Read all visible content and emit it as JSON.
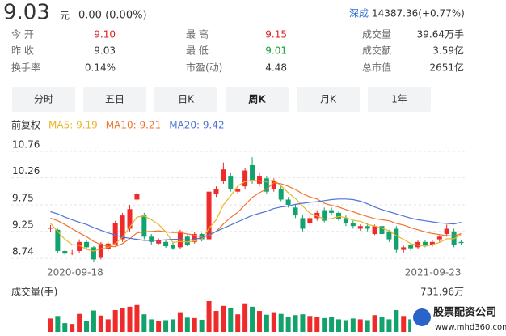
{
  "quote": {
    "price": "9.03",
    "unit": "元",
    "change": "0.00 (0.00%)"
  },
  "index": {
    "name": "深成",
    "value": "14387.36(+0.77%)"
  },
  "stats": [
    [
      {
        "label": "今 开",
        "value": "9.10",
        "color": "#e02020"
      },
      {
        "label": "最 高",
        "value": "9.15",
        "color": "#e02020"
      },
      {
        "label": "成交量",
        "value": "39.64万手"
      }
    ],
    [
      {
        "label": "昨 收",
        "value": "9.03"
      },
      {
        "label": "最 低",
        "value": "9.01",
        "color": "#1a9f3a"
      },
      {
        "label": "成交额",
        "value": "3.59亿"
      }
    ],
    [
      {
        "label": "换手率",
        "value": "0.14%"
      },
      {
        "label": "市盈(动)",
        "value": "4.48"
      },
      {
        "label": "总市值",
        "value": "2651亿"
      }
    ]
  ],
  "tabs": [
    {
      "label": "分时"
    },
    {
      "label": "五日"
    },
    {
      "label": "日K"
    },
    {
      "label": "周K",
      "active": true
    },
    {
      "label": "月K"
    },
    {
      "label": "1年"
    }
  ],
  "chart_data": [
    {
      "type": "candlestick",
      "adjust_label": "前复权",
      "categories": [
        "2020-09-18",
        null,
        null,
        null,
        null,
        null,
        null,
        null,
        null,
        null,
        null,
        null,
        null,
        null,
        null,
        null,
        null,
        null,
        null,
        null,
        null,
        null,
        null,
        null,
        null,
        null,
        null,
        null,
        null,
        null,
        null,
        null,
        null,
        null,
        null,
        null,
        null,
        null,
        null,
        null,
        null,
        null,
        null,
        null,
        null,
        null,
        null,
        null,
        null,
        null,
        null,
        null,
        null,
        null,
        null,
        null,
        null,
        "2021-09-23"
      ],
      "open": [
        9.3,
        9.28,
        8.88,
        8.83,
        8.88,
        9.05,
        8.95,
        8.75,
        8.92,
        9.0,
        9.1,
        9.3,
        9.85,
        9.55,
        9.15,
        9.02,
        9.05,
        9.0,
        8.95,
        9.15,
        9.05,
        9.2,
        9.1,
        9.95,
        10.2,
        10.3,
        10.0,
        10.1,
        10.5,
        10.15,
        10.25,
        10.05,
        10.05,
        9.85,
        9.7,
        9.5,
        9.4,
        9.5,
        9.65,
        9.65,
        9.6,
        9.5,
        9.4,
        9.3,
        9.35,
        9.2,
        9.35,
        9.25,
        9.3,
        8.9,
        9.0,
        8.95,
        9.05,
        9.0,
        9.1,
        9.2,
        9.25,
        9.05
      ],
      "high": [
        9.37,
        9.3,
        8.9,
        8.9,
        9.1,
        9.08,
        8.97,
        9.05,
        9.05,
        9.45,
        9.6,
        9.75,
        10.0,
        9.6,
        9.2,
        9.12,
        9.08,
        9.03,
        9.28,
        9.18,
        9.24,
        9.22,
        10.08,
        10.1,
        10.55,
        10.35,
        10.1,
        10.45,
        10.65,
        10.35,
        10.3,
        10.25,
        10.1,
        9.9,
        9.75,
        9.55,
        9.55,
        9.65,
        9.7,
        9.7,
        9.63,
        9.55,
        9.45,
        9.38,
        9.4,
        9.38,
        9.4,
        9.28,
        9.35,
        8.98,
        9.03,
        9.08,
        9.08,
        9.08,
        9.18,
        9.38,
        9.3,
        9.08
      ],
      "low": [
        9.24,
        8.85,
        8.8,
        8.8,
        8.85,
        8.92,
        8.68,
        8.72,
        8.88,
        8.98,
        9.05,
        9.25,
        9.8,
        9.1,
        9.0,
        9.0,
        8.94,
        8.9,
        8.92,
        8.97,
        9.02,
        9.06,
        9.08,
        9.9,
        10.15,
        10.0,
        9.95,
        10.05,
        10.15,
        10.1,
        9.95,
        10.0,
        9.82,
        9.7,
        9.5,
        9.25,
        9.35,
        9.45,
        9.42,
        9.55,
        9.45,
        9.35,
        9.3,
        9.26,
        9.25,
        9.18,
        9.15,
        9.05,
        8.85,
        8.85,
        8.88,
        8.92,
        8.95,
        8.96,
        9.05,
        9.15,
        8.95,
        9.0
      ],
      "close": [
        9.32,
        8.88,
        8.83,
        8.85,
        9.05,
        8.95,
        8.72,
        9.02,
        9.02,
        9.4,
        9.55,
        9.67,
        9.95,
        9.15,
        9.05,
        9.08,
        8.97,
        8.93,
        9.25,
        9.0,
        9.2,
        9.1,
        10.0,
        10.05,
        10.42,
        10.05,
        10.05,
        10.4,
        10.2,
        10.3,
        10.0,
        10.2,
        9.85,
        9.75,
        9.55,
        9.3,
        9.5,
        9.6,
        9.45,
        9.6,
        9.48,
        9.4,
        9.35,
        9.35,
        9.3,
        9.35,
        9.2,
        9.1,
        8.9,
        8.95,
        8.93,
        9.05,
        9.0,
        9.05,
        9.15,
        9.3,
        9.0,
        9.03
      ],
      "up_color": "#ee2a2a",
      "down_color": "#12a36c",
      "series": [
        {
          "name": "MA5: 9.19",
          "color": "#e9b52a",
          "values": [
            9.4,
            9.25,
            9.1,
            9.0,
            8.99,
            8.91,
            8.88,
            8.92,
            8.95,
            9.02,
            9.14,
            9.33,
            9.52,
            9.54,
            9.47,
            9.38,
            9.24,
            9.04,
            9.06,
            9.05,
            9.07,
            9.1,
            9.31,
            9.47,
            9.75,
            9.92,
            10.11,
            10.19,
            10.22,
            10.2,
            10.19,
            10.22,
            10.11,
            9.98,
            9.87,
            9.73,
            9.59,
            9.54,
            9.48,
            9.49,
            9.53,
            9.51,
            9.46,
            9.44,
            9.38,
            9.35,
            9.31,
            9.26,
            9.17,
            9.1,
            9.02,
            8.99,
            8.97,
            9.0,
            9.04,
            9.11,
            9.11,
            9.19
          ]
        },
        {
          "name": "MA10: 9.21",
          "color": "#f0742e",
          "values": [
            9.5,
            9.45,
            9.38,
            9.3,
            9.22,
            9.15,
            9.06,
            9.0,
            8.97,
            8.96,
            9.02,
            9.11,
            9.22,
            9.24,
            9.25,
            9.26,
            9.24,
            9.23,
            9.23,
            9.2,
            9.18,
            9.14,
            9.17,
            9.25,
            9.39,
            9.51,
            9.61,
            9.75,
            9.89,
            9.98,
            10.05,
            10.17,
            10.15,
            10.1,
            10.04,
            9.96,
            9.9,
            9.86,
            9.78,
            9.74,
            9.71,
            9.66,
            9.62,
            9.57,
            9.53,
            9.49,
            9.47,
            9.45,
            9.4,
            9.37,
            9.32,
            9.28,
            9.24,
            9.21,
            9.19,
            9.17,
            9.16,
            9.21
          ]
        },
        {
          "name": "MA20: 9.42",
          "color": "#4e72d8",
          "values": [
            9.62,
            9.58,
            9.52,
            9.47,
            9.42,
            9.38,
            9.32,
            9.27,
            9.22,
            9.18,
            9.14,
            9.12,
            9.1,
            9.08,
            9.08,
            9.08,
            9.09,
            9.1,
            9.1,
            9.08,
            9.1,
            9.13,
            9.19,
            9.25,
            9.31,
            9.37,
            9.43,
            9.49,
            9.55,
            9.59,
            9.63,
            9.68,
            9.71,
            9.73,
            9.76,
            9.78,
            9.8,
            9.81,
            9.83,
            9.85,
            9.86,
            9.86,
            9.85,
            9.82,
            9.77,
            9.71,
            9.66,
            9.62,
            9.58,
            9.54,
            9.5,
            9.47,
            9.45,
            9.43,
            9.41,
            9.4,
            9.39,
            9.42
          ]
        }
      ],
      "ylim": [
        8.65,
        11.05
      ],
      "yticks": [
        10.76,
        10.26,
        9.75,
        9.25,
        8.74
      ],
      "grid": true
    },
    {
      "type": "bar",
      "title": "成交量(手)",
      "values": [
        320,
        380,
        210,
        190,
        430,
        270,
        510,
        390,
        300,
        520,
        560,
        600,
        640,
        420,
        300,
        250,
        280,
        300,
        470,
        340,
        330,
        290,
        731.96,
        500,
        620,
        560,
        420,
        680,
        600,
        500,
        410,
        470,
        430,
        360,
        400,
        420,
        380,
        350,
        330,
        360,
        300,
        280,
        320,
        300,
        280,
        400,
        350,
        300,
        520,
        380,
        300,
        350,
        280,
        300,
        460,
        430,
        380,
        150
      ],
      "ylim": [
        0,
        731.96
      ],
      "yticks": [
        {
          "value": 731.96,
          "label": "731.96万"
        }
      ]
    }
  ],
  "watermark": {
    "title": "股票配资公司",
    "url": "www.mhd360.com"
  }
}
